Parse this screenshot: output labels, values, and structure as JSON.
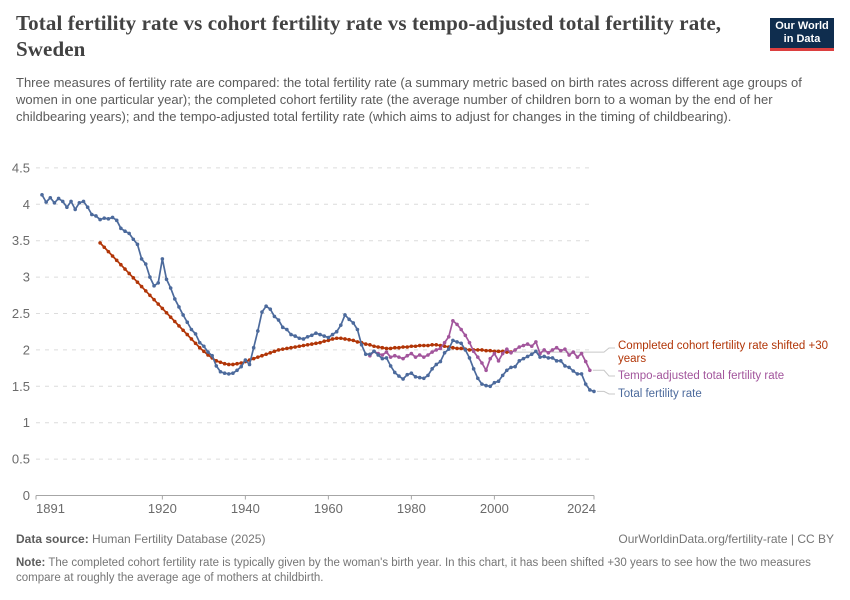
{
  "header": {
    "title": "Total fertility rate vs cohort fertility rate vs tempo-adjusted total fertility rate, Sweden",
    "subtitle": "Three measures of fertility rate are compared: the total fertility rate (a summary metric based on birth rates across different age groups of women in one particular year); the completed cohort fertility rate (the average number of children born to a woman by the end of her childbearing years); and the tempo-adjusted total fertility rate (which aims to adjust for changes in the timing of childbearing).",
    "logo": {
      "line1": "Our World",
      "line2": "in Data",
      "bg_color": "#0f2d4e",
      "bar_color": "#dc3f3f"
    }
  },
  "chart_data": {
    "type": "line",
    "title": "Total fertility rate vs cohort fertility rate vs tempo-adjusted total fertility rate, Sweden",
    "xlabel": "",
    "ylabel": "",
    "xlim": [
      1891,
      2024
    ],
    "ylim": [
      0,
      4.5
    ],
    "x_ticks": [
      1891,
      1920,
      1940,
      1960,
      1980,
      2000,
      2024
    ],
    "y_ticks": [
      0,
      0.5,
      1,
      1.5,
      2,
      2.5,
      3,
      3.5,
      4,
      4.5
    ],
    "grid": "horizontal-dashed",
    "legend_position": "right",
    "series": [
      {
        "name": "Completed cohort fertility rate shifted +30 years",
        "color": "#B13507",
        "start_year": 1905,
        "end_year": 2004,
        "values": [
          3.47,
          3.41,
          3.35,
          3.29,
          3.23,
          3.17,
          3.11,
          3.05,
          2.99,
          2.93,
          2.87,
          2.81,
          2.75,
          2.69,
          2.63,
          2.57,
          2.51,
          2.45,
          2.39,
          2.33,
          2.27,
          2.21,
          2.15,
          2.09,
          2.03,
          1.98,
          1.93,
          1.89,
          1.85,
          1.83,
          1.81,
          1.8,
          1.8,
          1.81,
          1.82,
          1.84,
          1.86,
          1.88,
          1.9,
          1.92,
          1.94,
          1.96,
          1.98,
          2.0,
          2.01,
          2.02,
          2.03,
          2.04,
          2.05,
          2.06,
          2.07,
          2.08,
          2.09,
          2.1,
          2.12,
          2.13,
          2.15,
          2.16,
          2.16,
          2.15,
          2.14,
          2.13,
          2.11,
          2.1,
          2.08,
          2.07,
          2.05,
          2.04,
          2.03,
          2.02,
          2.02,
          2.03,
          2.03,
          2.04,
          2.04,
          2.05,
          2.05,
          2.06,
          2.06,
          2.06,
          2.07,
          2.07,
          2.06,
          2.05,
          2.04,
          2.03,
          2.02,
          2.02,
          2.01,
          2.0,
          2.0,
          2.0,
          2.0,
          1.99,
          1.99,
          1.98,
          1.98,
          1.98,
          1.97,
          1.97
        ]
      },
      {
        "name": "Tempo-adjusted total fertility rate",
        "color": "#A2559C",
        "start_year": 1970,
        "end_year": 2023,
        "values": [
          1.92,
          1.98,
          1.95,
          1.93,
          1.97,
          1.9,
          1.92,
          1.9,
          1.88,
          1.92,
          1.95,
          1.9,
          1.93,
          1.9,
          1.93,
          1.97,
          2.0,
          2.02,
          2.1,
          2.18,
          2.4,
          2.35,
          2.28,
          2.2,
          2.1,
          1.98,
          1.9,
          1.82,
          1.72,
          1.88,
          1.95,
          1.85,
          1.95,
          2.01,
          1.96,
          2.0,
          2.04,
          2.06,
          2.08,
          2.05,
          2.11,
          1.95,
          2.0,
          1.96,
          2.0,
          2.03,
          1.99,
          2.01,
          1.93,
          1.97,
          1.9,
          1.95,
          1.84,
          1.72
        ]
      },
      {
        "name": "Total fertility rate",
        "color": "#4C6A9C",
        "start_year": 1891,
        "end_year": 2024,
        "values": [
          4.13,
          4.03,
          4.09,
          4.02,
          4.08,
          4.04,
          3.96,
          4.04,
          3.93,
          4.02,
          4.04,
          3.96,
          3.86,
          3.84,
          3.79,
          3.81,
          3.8,
          3.82,
          3.78,
          3.67,
          3.63,
          3.6,
          3.52,
          3.45,
          3.25,
          3.18,
          3.0,
          2.88,
          2.92,
          3.25,
          2.97,
          2.85,
          2.7,
          2.59,
          2.48,
          2.38,
          2.28,
          2.22,
          2.1,
          2.05,
          1.97,
          1.92,
          1.78,
          1.7,
          1.68,
          1.67,
          1.68,
          1.72,
          1.77,
          1.86,
          1.8,
          2.03,
          2.26,
          2.52,
          2.6,
          2.56,
          2.46,
          2.41,
          2.31,
          2.28,
          2.21,
          2.19,
          2.16,
          2.15,
          2.18,
          2.2,
          2.23,
          2.21,
          2.19,
          2.17,
          2.21,
          2.25,
          2.34,
          2.48,
          2.42,
          2.37,
          2.28,
          2.07,
          1.94,
          1.94,
          1.98,
          1.93,
          1.88,
          1.89,
          1.78,
          1.69,
          1.64,
          1.6,
          1.66,
          1.68,
          1.63,
          1.62,
          1.61,
          1.65,
          1.74,
          1.8,
          1.84,
          1.96,
          2.01,
          2.13,
          2.11,
          2.09,
          2.0,
          1.89,
          1.74,
          1.61,
          1.53,
          1.51,
          1.5,
          1.55,
          1.57,
          1.65,
          1.72,
          1.76,
          1.77,
          1.85,
          1.88,
          1.91,
          1.94,
          1.98,
          1.9,
          1.91,
          1.89,
          1.89,
          1.85,
          1.85,
          1.78,
          1.76,
          1.71,
          1.67,
          1.67,
          1.53,
          1.45,
          1.43
        ]
      }
    ]
  },
  "footer": {
    "data_source_label": "Data source:",
    "data_source": "Human Fertility Database (2025)",
    "link": "OurWorldinData.org/fertility-rate | CC BY",
    "note_label": "Note:",
    "note": "The completed cohort fertility rate is typically given by the woman's birth year. In this chart, it has been shifted +30 years to see how the two measures compare at roughly the average age of mothers at childbirth."
  }
}
